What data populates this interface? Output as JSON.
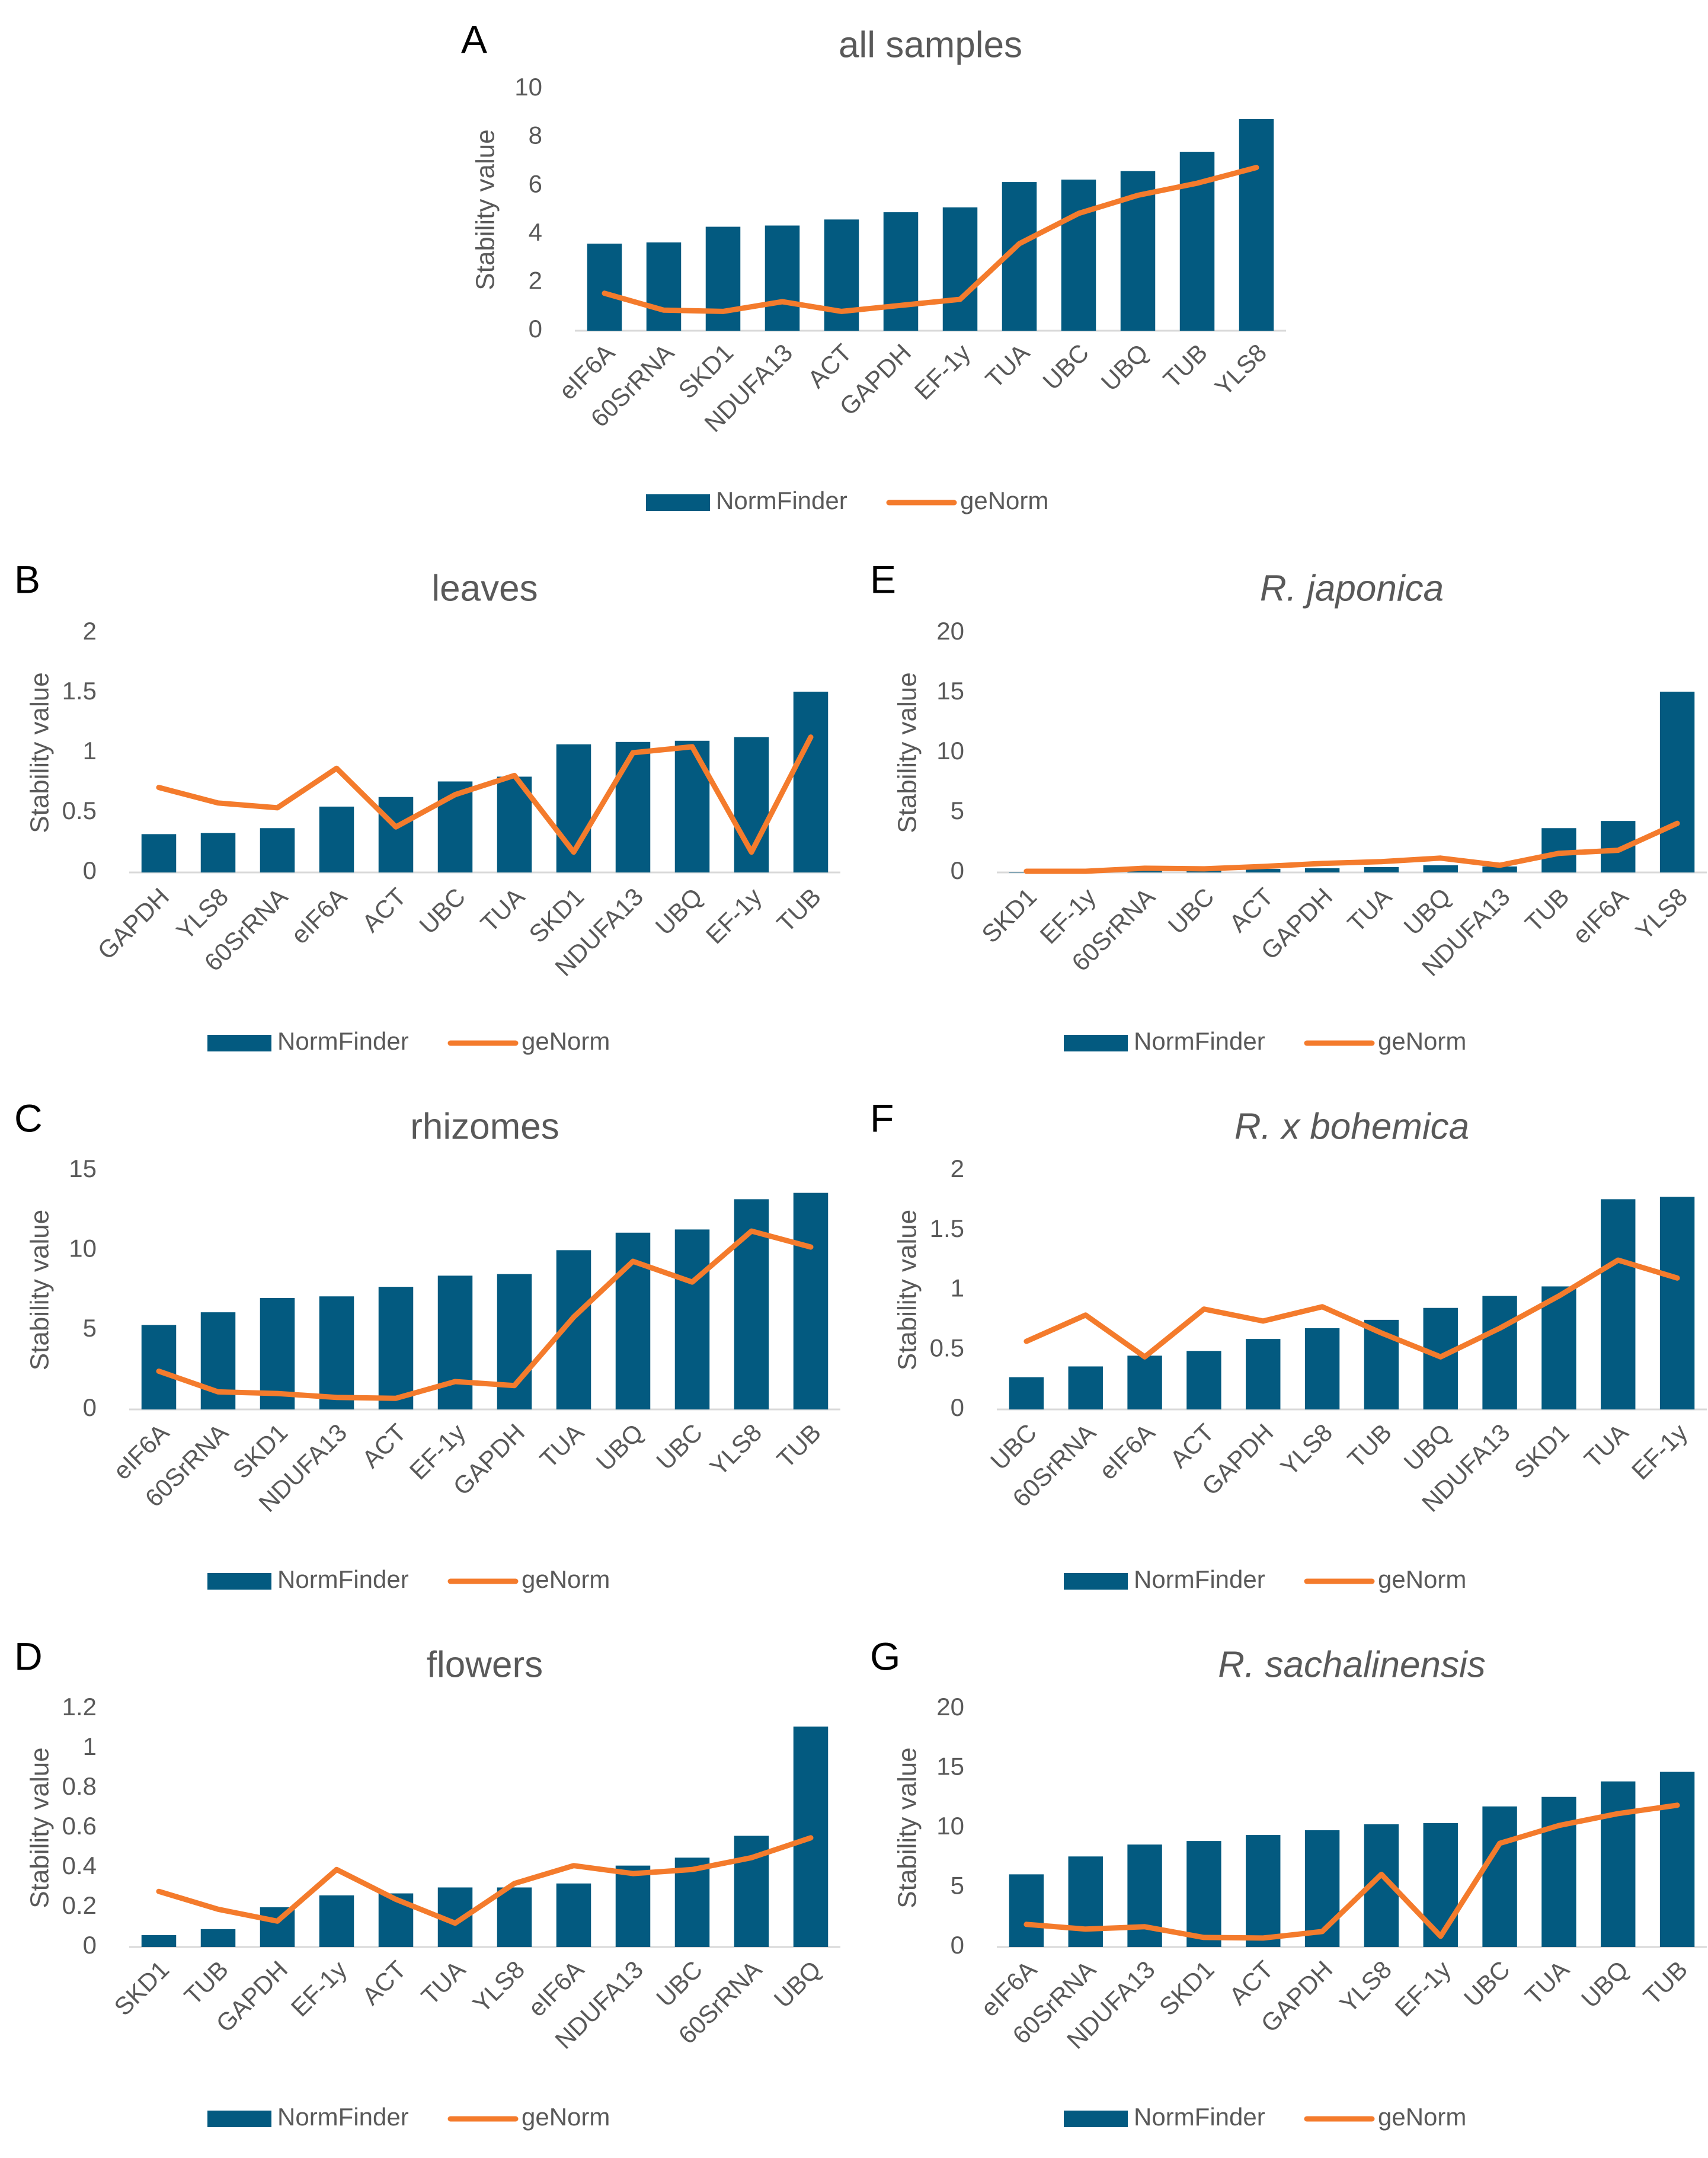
{
  "figure": {
    "ylabel": "Stability value",
    "legend": {
      "bar_label": "NormFinder",
      "line_label": "geNorm"
    },
    "colors": {
      "bar": "#035a80",
      "line": "#f47b2c",
      "text": "#595959",
      "axis": "#d9d9d9",
      "panel_letter": "#000000"
    }
  },
  "chart_data": [
    {
      "panel": "A",
      "type": "bar",
      "title": "all samples",
      "italic_title": false,
      "xlabel": "",
      "ylabel": "Stability value",
      "ylim": [
        0,
        10
      ],
      "yticks": [
        "0",
        "2",
        "4",
        "6",
        "8",
        "10"
      ],
      "categories": [
        "eIF6A",
        "60SrRNA",
        "SKD1",
        "NDUFA13",
        "ACT",
        "GAPDH",
        "EF-1y",
        "TUA",
        "UBC",
        "UBQ",
        "TUB",
        "YLS8"
      ],
      "series": [
        {
          "name": "NormFinder",
          "kind": "bar",
          "values": [
            3.6,
            3.65,
            4.3,
            4.35,
            4.6,
            4.9,
            5.1,
            6.15,
            6.25,
            6.6,
            7.4,
            8.75
          ]
        },
        {
          "name": "geNorm",
          "kind": "line",
          "values": [
            1.55,
            0.85,
            0.8,
            1.2,
            0.8,
            1.05,
            1.3,
            3.6,
            4.85,
            5.6,
            6.1,
            6.75
          ]
        }
      ],
      "legend": "bottom"
    },
    {
      "panel": "B",
      "type": "bar",
      "title": "leaves",
      "italic_title": false,
      "xlabel": "",
      "ylabel": "Stability value",
      "ylim": [
        0,
        2
      ],
      "yticks": [
        "0",
        "0.5",
        "1",
        "1.5",
        "2"
      ],
      "categories": [
        "GAPDH",
        "YLS8",
        "60SrRNA",
        "eIF6A",
        "ACT",
        "UBC",
        "TUA",
        "SKD1",
        "NDUFA13",
        "UBQ",
        "EF-1y",
        "TUB"
      ],
      "series": [
        {
          "name": "NormFinder",
          "kind": "bar",
          "values": [
            0.32,
            0.33,
            0.37,
            0.55,
            0.63,
            0.76,
            0.8,
            1.07,
            1.09,
            1.1,
            1.13,
            1.51
          ]
        },
        {
          "name": "geNorm",
          "kind": "line",
          "values": [
            0.71,
            0.58,
            0.54,
            0.87,
            0.38,
            0.65,
            0.81,
            0.17,
            1.0,
            1.05,
            0.17,
            1.13
          ]
        }
      ],
      "legend": "bottom"
    },
    {
      "panel": "C",
      "type": "bar",
      "title": "rhizomes",
      "italic_title": false,
      "xlabel": "",
      "ylabel": "Stability value",
      "ylim": [
        0,
        15
      ],
      "yticks": [
        "0",
        "5",
        "10",
        "15"
      ],
      "categories": [
        "eIF6A",
        "60SrRNA",
        "SKD1",
        "NDUFA13",
        "ACT",
        "EF-1y",
        "GAPDH",
        "TUA",
        "UBQ",
        "UBC",
        "YLS8",
        "TUB"
      ],
      "series": [
        {
          "name": "NormFinder",
          "kind": "bar",
          "values": [
            5.3,
            6.1,
            7.0,
            7.1,
            7.7,
            8.4,
            8.5,
            10.0,
            11.1,
            11.3,
            13.2,
            13.6
          ]
        },
        {
          "name": "geNorm",
          "kind": "line",
          "values": [
            2.4,
            1.1,
            1.0,
            0.75,
            0.7,
            1.75,
            1.5,
            5.8,
            9.3,
            8.0,
            11.2,
            10.2
          ]
        }
      ],
      "legend": "bottom"
    },
    {
      "panel": "D",
      "type": "bar",
      "title": "flowers",
      "italic_title": false,
      "xlabel": "",
      "ylabel": "Stability value",
      "ylim": [
        0,
        1.2
      ],
      "yticks": [
        "0",
        "0.2",
        "0.4",
        "0.6",
        "0.8",
        "1",
        "1.2"
      ],
      "categories": [
        "SKD1",
        "TUB",
        "GAPDH",
        "EF-1y",
        "ACT",
        "TUA",
        "YLS8",
        "eIF6A",
        "NDUFA13",
        "UBC",
        "60SrRNA",
        "UBQ"
      ],
      "series": [
        {
          "name": "NormFinder",
          "kind": "bar",
          "values": [
            0.06,
            0.09,
            0.2,
            0.26,
            0.27,
            0.3,
            0.3,
            0.32,
            0.41,
            0.45,
            0.56,
            1.11
          ]
        },
        {
          "name": "geNorm",
          "kind": "line",
          "values": [
            0.28,
            0.19,
            0.13,
            0.39,
            0.24,
            0.12,
            0.32,
            0.41,
            0.37,
            0.39,
            0.45,
            0.55
          ]
        }
      ],
      "legend": "bottom"
    },
    {
      "panel": "E",
      "type": "bar",
      "title": "R. japonica",
      "italic_title": true,
      "xlabel": "",
      "ylabel": "Stability value",
      "ylim": [
        0,
        20
      ],
      "yticks": [
        "0",
        "5",
        "10",
        "15",
        "20"
      ],
      "categories": [
        "SKD1",
        "EF-1y",
        "60SrRNA",
        "UBC",
        "ACT",
        "GAPDH",
        "TUA",
        "UBQ",
        "NDUFA13",
        "TUB",
        "eIF6A",
        "YLS8"
      ],
      "series": [
        {
          "name": "NormFinder",
          "kind": "bar",
          "values": [
            0.05,
            0.1,
            0.2,
            0.25,
            0.3,
            0.35,
            0.45,
            0.6,
            0.5,
            3.7,
            4.3,
            15.1
          ]
        },
        {
          "name": "geNorm",
          "kind": "line",
          "values": [
            0.1,
            0.1,
            0.35,
            0.3,
            0.5,
            0.75,
            0.9,
            1.2,
            0.6,
            1.6,
            1.85,
            4.1
          ]
        }
      ],
      "legend": "bottom"
    },
    {
      "panel": "F",
      "type": "bar",
      "title": "R. x bohemica",
      "italic_title": true,
      "xlabel": "",
      "ylabel": "Stability value",
      "ylim": [
        0,
        2
      ],
      "yticks": [
        "0",
        "0.5",
        "1",
        "1.5",
        "2"
      ],
      "categories": [
        "UBC",
        "60SrRNA",
        "eIF6A",
        "ACT",
        "GAPDH",
        "YLS8",
        "TUB",
        "UBQ",
        "NDUFA13",
        "SKD1",
        "TUA",
        "EF-1y"
      ],
      "series": [
        {
          "name": "NormFinder",
          "kind": "bar",
          "values": [
            0.27,
            0.36,
            0.45,
            0.49,
            0.59,
            0.68,
            0.75,
            0.85,
            0.95,
            1.03,
            1.76,
            1.78
          ]
        },
        {
          "name": "geNorm",
          "kind": "line",
          "values": [
            0.57,
            0.79,
            0.44,
            0.84,
            0.74,
            0.86,
            0.64,
            0.44,
            0.68,
            0.95,
            1.25,
            1.1
          ]
        }
      ],
      "legend": "bottom"
    },
    {
      "panel": "G",
      "type": "bar",
      "title": "R. sachalinensis",
      "italic_title": true,
      "xlabel": "",
      "ylabel": "Stability value",
      "ylim": [
        0,
        20
      ],
      "yticks": [
        "0",
        "5",
        "10",
        "15",
        "20"
      ],
      "categories": [
        "eIF6A",
        "60SrRNA",
        "NDUFA13",
        "SKD1",
        "ACT",
        "GAPDH",
        "YLS8",
        "EF-1y",
        "UBC",
        "TUA",
        "UBQ",
        "TUB"
      ],
      "series": [
        {
          "name": "NormFinder",
          "kind": "bar",
          "values": [
            6.1,
            7.6,
            8.6,
            8.9,
            9.4,
            9.8,
            10.3,
            10.4,
            11.8,
            12.6,
            13.9,
            14.7
          ]
        },
        {
          "name": "geNorm",
          "kind": "line",
          "values": [
            1.9,
            1.5,
            1.7,
            0.8,
            0.75,
            1.3,
            6.1,
            0.9,
            8.7,
            10.2,
            11.2,
            11.9
          ]
        }
      ],
      "legend": "bottom"
    }
  ]
}
